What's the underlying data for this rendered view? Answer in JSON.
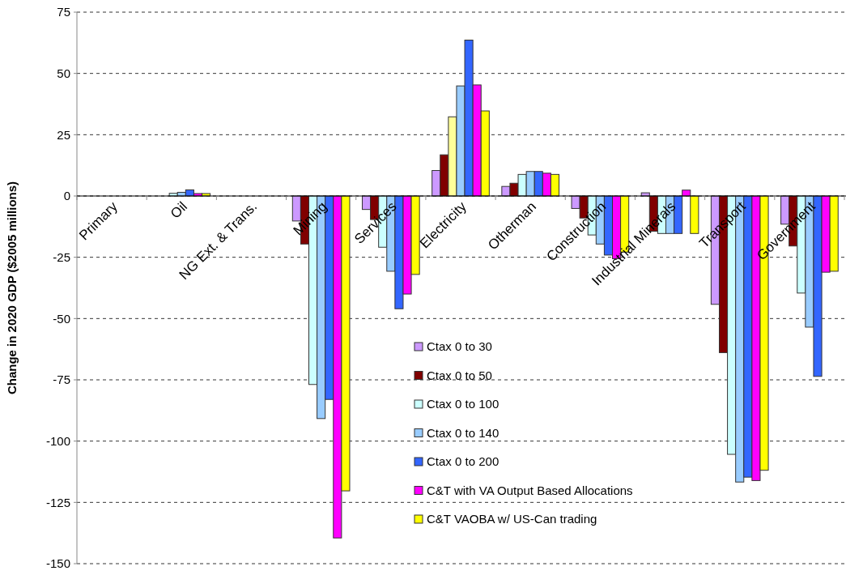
{
  "chart_data": {
    "type": "bar",
    "ylabel": "Change in 2020 GDP ($2005 millions)",
    "categories": [
      "Primary",
      "Oil",
      "NG Ext. & Trans.",
      "Mining",
      "Services",
      "Electricity",
      "Otherman",
      "Construction",
      "Industrial Minerals",
      "Transport",
      "Government"
    ],
    "series": [
      {
        "name": "Ctax 0 to 30",
        "color": "#cc99ff",
        "values": [
          0,
          null,
          0,
          -10.2,
          -5.5,
          10.4,
          3.9,
          -5.1,
          1.3,
          -44.2,
          -11.5
        ]
      },
      {
        "name": "Ctax 0 to 50",
        "color": "#800000",
        "values": [
          null,
          null,
          0,
          -19.6,
          -9.6,
          16.8,
          5.2,
          -9,
          -14.4,
          -63.9,
          -20.4
        ]
      },
      {
        "name": "Ctax 0 to 100",
        "color": "#ccffff",
        "colors": [
          null,
          "#ccffff",
          "#ccffff",
          "#ccffff",
          "#ccffff",
          "#ffff99",
          "#ccffff",
          "#ccffff",
          "#ccffff",
          "#ccffff",
          "#ccffff"
        ],
        "values": [
          null,
          1.1,
          0,
          -76.9,
          -20.9,
          32.3,
          8.8,
          -15.9,
          -15.3,
          -105.4,
          -39.6
        ]
      },
      {
        "name": "Ctax 0 to 140",
        "color": "#99ccff",
        "values": [
          0,
          1.5,
          0,
          -90.8,
          -30.7,
          44.9,
          10,
          -19.6,
          -15.3,
          -116.7,
          -53.5
        ]
      },
      {
        "name": "Ctax 0 to 200",
        "color": "#3366ff",
        "values": [
          0,
          2.5,
          0,
          -83,
          -46,
          63.6,
          10,
          -24.1,
          -15.3,
          -114.7,
          -73.6
        ]
      },
      {
        "name": "C&T with VA Output Based Allocations",
        "color": "#ff00ff",
        "values": [
          0,
          1,
          0,
          -139.5,
          -40,
          45.3,
          9.3,
          -25.6,
          2.4,
          -116.1,
          -31.1
        ]
      },
      {
        "name": "C&T VAOBA w/ US-Can trading",
        "color": "#ffff00",
        "values": [
          0,
          1,
          0,
          -120.3,
          -32,
          34.7,
          8.8,
          -22.9,
          -15.3,
          -111.9,
          -30.7
        ]
      }
    ],
    "ylim": [
      -150,
      75
    ],
    "yticks": [
      -150,
      -125,
      -100,
      -75,
      -50,
      -25,
      0,
      25,
      50,
      75
    ],
    "grid": "y",
    "legend": "bottom"
  }
}
